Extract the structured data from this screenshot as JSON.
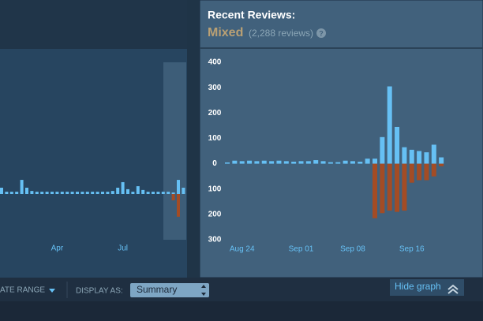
{
  "header": {
    "title": "Recent Reviews:",
    "rating": "Mixed",
    "count": "(2,288 reviews)",
    "help": "?"
  },
  "chart_data": [
    {
      "type": "bar",
      "categories": [
        null,
        null,
        null,
        null,
        null,
        null,
        null,
        null,
        null,
        null,
        null,
        "Apr",
        null,
        null,
        null,
        null,
        null,
        null,
        null,
        null,
        null,
        null,
        null,
        null,
        "Jul",
        null,
        null,
        null,
        null,
        null,
        null,
        null,
        null,
        null,
        null,
        null,
        null
      ],
      "series": [
        {
          "color": "#66c0f4",
          "values": [
            25,
            9,
            9,
            9,
            56,
            25,
            12,
            9,
            9,
            9,
            9,
            9,
            9,
            9,
            9,
            9,
            9,
            9,
            9,
            9,
            9,
            9,
            12,
            25,
            47,
            19,
            9,
            31,
            16,
            9,
            9,
            9,
            9,
            9,
            6,
            56,
            25
          ]
        },
        {
          "color": "#a34c25",
          "values": [
            0,
            0,
            0,
            0,
            0,
            0,
            0,
            0,
            0,
            0,
            0,
            0,
            0,
            0,
            0,
            0,
            0,
            0,
            0,
            0,
            0,
            0,
            0,
            0,
            0,
            0,
            0,
            0,
            0,
            0,
            0,
            0,
            0,
            0,
            -25,
            -90,
            0
          ]
        }
      ]
    },
    {
      "type": "bar",
      "categories": [
        null,
        null,
        "Aug 24",
        null,
        null,
        null,
        null,
        null,
        null,
        null,
        "Sep 01",
        null,
        null,
        null,
        null,
        null,
        null,
        "Sep 08",
        null,
        null,
        null,
        null,
        null,
        null,
        null,
        "Sep 16",
        null,
        null,
        null,
        null
      ],
      "series": [
        {
          "color": "#66c0f4",
          "values": [
            5,
            12,
            10,
            12,
            10,
            12,
            10,
            12,
            10,
            8,
            10,
            10,
            14,
            10,
            6,
            6,
            12,
            10,
            8,
            20,
            20,
            105,
            305,
            145,
            65,
            55,
            50,
            45,
            75,
            25
          ]
        },
        {
          "color": "#a34c25",
          "values": [
            0,
            0,
            0,
            0,
            0,
            0,
            0,
            0,
            0,
            0,
            0,
            0,
            0,
            0,
            0,
            0,
            0,
            0,
            0,
            0,
            -215,
            -195,
            -185,
            -190,
            -185,
            -75,
            -65,
            -65,
            -50,
            -10
          ]
        }
      ],
      "ylim": [
        -300,
        400
      ],
      "yticks": [
        400,
        300,
        200,
        100,
        0,
        {
          "value": -100,
          "label": "100"
        },
        {
          "value": -200,
          "label": "200"
        },
        {
          "value": -300,
          "label": "300"
        }
      ]
    }
  ],
  "controls": {
    "date_range": "ATE RANGE",
    "display_as": "DISPLAY AS:",
    "display_value": "Summary",
    "hide_graph": "Hide graph"
  }
}
